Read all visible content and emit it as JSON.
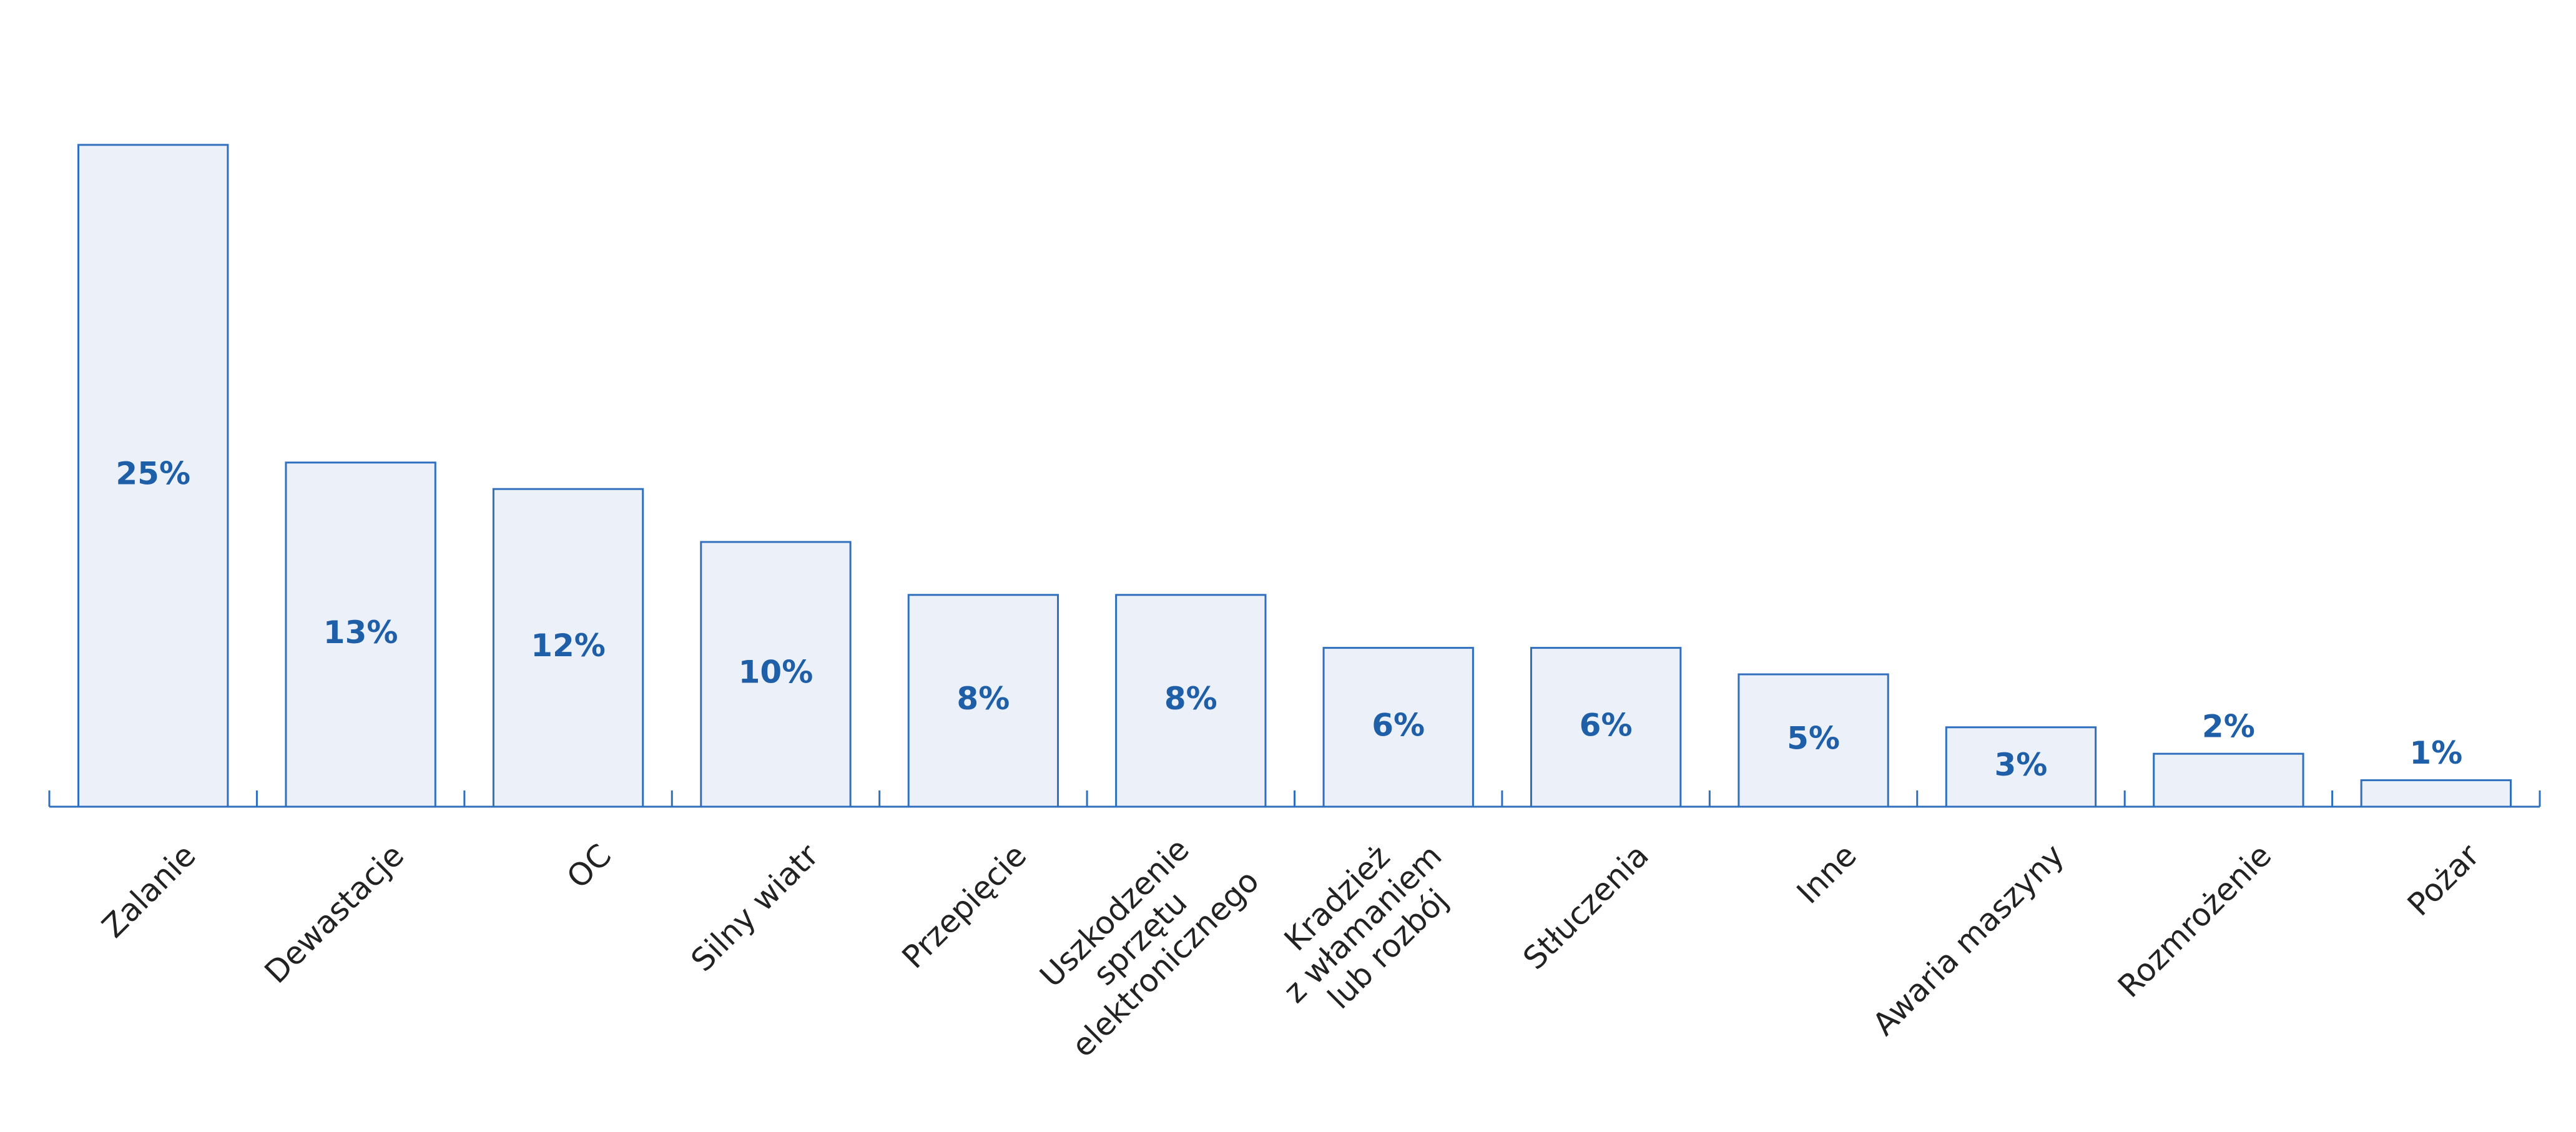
{
  "chart_data": {
    "type": "bar",
    "categories": [
      "Zalanie",
      "Dewastacje",
      "OC",
      "Silny wiatr",
      "Przepięcie",
      "Uszkodzenie\nsprzętu\nelektronicznego",
      "Kradzież\nz włamaniem\nlub rozbój",
      "Stłuczenia",
      "Inne",
      "Awaria maszyny",
      "Rozmrożenie",
      "Pożar"
    ],
    "values": [
      25,
      13,
      12,
      10,
      8,
      8,
      6,
      6,
      5,
      3,
      2,
      1
    ],
    "value_labels": [
      "25%",
      "13%",
      "12%",
      "10%",
      "8%",
      "8%",
      "6%",
      "6%",
      "5%",
      "3%",
      "2%",
      "1%"
    ],
    "color": "#ecf1f9",
    "edge_color": "#2f6fbd",
    "label_color": "#1f5fa8"
  }
}
